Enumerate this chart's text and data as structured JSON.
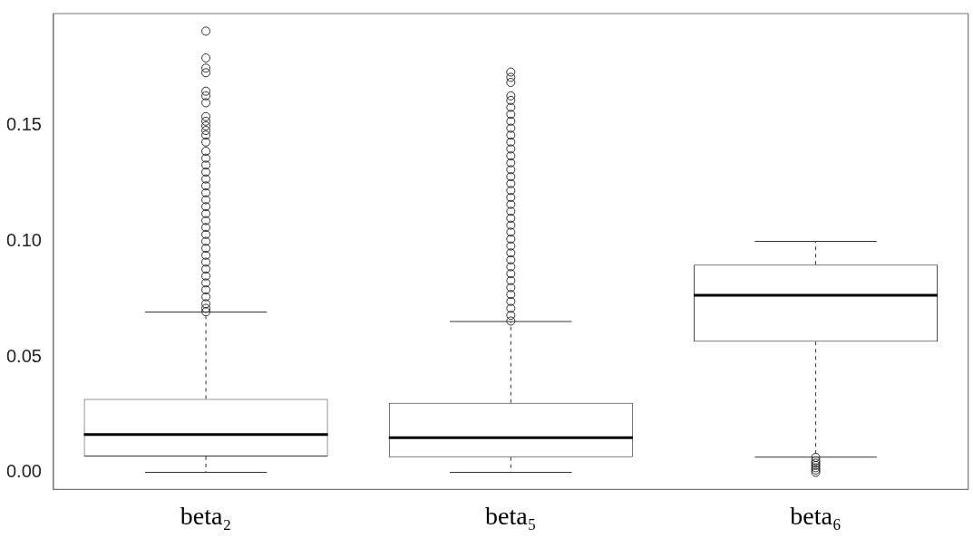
{
  "chart_data": {
    "type": "box",
    "categories": [
      "beta₂",
      "beta₅",
      "beta₆"
    ],
    "boxes": [
      {
        "low": 0,
        "q1": 0.0069,
        "median": 0.0164,
        "q3": 0.0318,
        "high": 0.0694,
        "outliers": [
          0.191,
          0.1794,
          0.175,
          0.173,
          0.165,
          0.163,
          0.16,
          0.154,
          0.152,
          0.15,
          0.148,
          0.146,
          0.143,
          0.139,
          0.136,
          0.133,
          0.13,
          0.127,
          0.124,
          0.121,
          0.118,
          0.115,
          0.112,
          0.109,
          0.106,
          0.103,
          0.1,
          0.097,
          0.094,
          0.091,
          0.088,
          0.085,
          0.082,
          0.079,
          0.076,
          0.073,
          0.071,
          0.0695
        ]
      },
      {
        "low": 0,
        "q1": 0.0066,
        "median": 0.015,
        "q3": 0.0301,
        "high": 0.0653,
        "outliers": [
          0.1733,
          0.171,
          0.1688,
          0.163,
          0.161,
          0.158,
          0.155,
          0.152,
          0.149,
          0.146,
          0.143,
          0.14,
          0.137,
          0.134,
          0.131,
          0.128,
          0.125,
          0.122,
          0.119,
          0.116,
          0.113,
          0.11,
          0.107,
          0.104,
          0.101,
          0.098,
          0.095,
          0.092,
          0.089,
          0.086,
          0.083,
          0.08,
          0.077,
          0.074,
          0.071,
          0.068,
          0.0655
        ]
      },
      {
        "low": 0.0066,
        "q1": 0.0566,
        "median": 0.0767,
        "q3": 0.0899,
        "high": 0.1,
        "outliers": [
          0.0065,
          0.005,
          0.004,
          0.003,
          0.002,
          0.001,
          0
        ]
      }
    ],
    "color": "#333333",
    "ylim": [
      -0.0074,
      0.1986
    ],
    "yticks": [
      {
        "value": 0,
        "label": "0.00"
      },
      {
        "value": 0.05,
        "label": "0.05"
      },
      {
        "value": 0.1,
        "label": "0.10"
      },
      {
        "value": 0.15,
        "label": "0.15"
      }
    ],
    "grid": false,
    "legend": false,
    "marker": "circle"
  }
}
